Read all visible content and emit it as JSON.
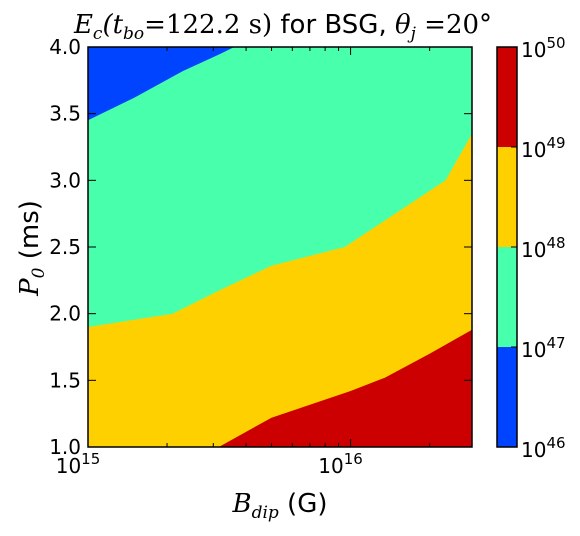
{
  "chart_data": {
    "type": "contourf",
    "title": {
      "prefix": "E",
      "prefix_sub": "c",
      "paren_open": "(t",
      "paren_sub": "bo",
      "paren_rest": "=122.2 s)",
      "middle": " for BSG, ",
      "theta": "θ",
      "theta_sub": "j",
      "tail": " =20°"
    },
    "xlabel": {
      "main": "B",
      "sub": "dip",
      "unit": " (G)"
    },
    "ylabel": {
      "main": "P",
      "sub": "0",
      "unit": " (ms)"
    },
    "x_scale": "log",
    "xlim": [
      1000000000000000.0,
      2.9e+16
    ],
    "ylim": [
      1.0,
      4.0
    ],
    "x_ticks": [
      {
        "value": 1000000000000000.0,
        "base": "10",
        "exp": "15"
      },
      {
        "value": 1e+16,
        "base": "10",
        "exp": "16"
      }
    ],
    "y_ticks": [
      {
        "value": 1.0,
        "label": "1.0"
      },
      {
        "value": 1.5,
        "label": "1.5"
      },
      {
        "value": 2.0,
        "label": "2.0"
      },
      {
        "value": 2.5,
        "label": "2.5"
      },
      {
        "value": 3.0,
        "label": "3.0"
      },
      {
        "value": 3.5,
        "label": "3.5"
      },
      {
        "value": 4.0,
        "label": "4.0"
      }
    ],
    "levels": [
      {
        "base": "10",
        "exp": "46",
        "value": 1e+46
      },
      {
        "base": "10",
        "exp": "47",
        "value": 1e+47
      },
      {
        "base": "10",
        "exp": "48",
        "value": 1e+48
      },
      {
        "base": "10",
        "exp": "49",
        "value": 1e+49
      },
      {
        "base": "10",
        "exp": "50",
        "value": 1e+50
      }
    ],
    "bands": [
      {
        "range": "1e46-1e47",
        "color": "#0044ff"
      },
      {
        "range": "1e47-1e48",
        "color": "#48ffac"
      },
      {
        "range": "1e48-1e49",
        "color": "#ffd000"
      },
      {
        "range": "1e49-1e50",
        "color": "#cc0000"
      }
    ],
    "contours": {
      "E=1e47": [
        {
          "x": 1000000000000000.0,
          "y": 3.45
        },
        {
          "x": 1500000000000000.0,
          "y": 3.62
        },
        {
          "x": 2300000000000000.0,
          "y": 3.82
        },
        {
          "x": 3200000000000000.0,
          "y": 3.95
        },
        {
          "x": 3600000000000000.0,
          "y": 4.0
        }
      ],
      "E=1e48": [
        {
          "x": 1000000000000000.0,
          "y": 1.9
        },
        {
          "x": 2100000000000000.0,
          "y": 2.0
        },
        {
          "x": 3200000000000000.0,
          "y": 2.18
        },
        {
          "x": 5000000000000000.0,
          "y": 2.36
        },
        {
          "x": 9500000000000000.0,
          "y": 2.5
        },
        {
          "x": 1.4e+16,
          "y": 2.72
        },
        {
          "x": 2.3e+16,
          "y": 3.0
        },
        {
          "x": 2.9e+16,
          "y": 3.35
        }
      ],
      "E=1e49": [
        {
          "x": 3150000000000000.0,
          "y": 1.0
        },
        {
          "x": 5000000000000000.0,
          "y": 1.22
        },
        {
          "x": 1e+16,
          "y": 1.42
        },
        {
          "x": 1.35e+16,
          "y": 1.52
        },
        {
          "x": 2e+16,
          "y": 1.7
        },
        {
          "x": 2.9e+16,
          "y": 1.88
        }
      ]
    }
  }
}
